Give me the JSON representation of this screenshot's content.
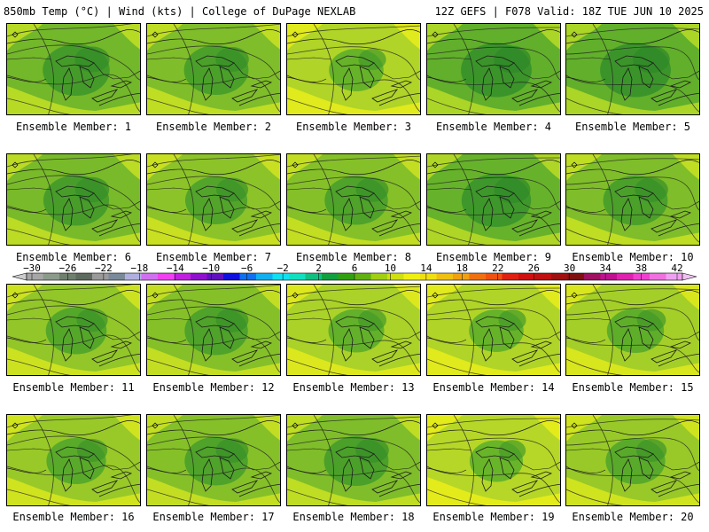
{
  "header": {
    "left": "850mb Temp (°C) | Wind (kts) | College of DuPage NEXLAB",
    "right": "12Z GEFS | F078 Valid: 18Z TUE JUN 10 2025"
  },
  "members": [
    {
      "label": "Ensemble Member: 1",
      "warmth": 0.3
    },
    {
      "label": "Ensemble Member: 2",
      "warmth": 0.4
    },
    {
      "label": "Ensemble Member: 3",
      "warmth": 0.8
    },
    {
      "label": "Ensemble Member: 4",
      "warmth": 0.15
    },
    {
      "label": "Ensemble Member: 5",
      "warmth": 0.15
    },
    {
      "label": "Ensemble Member: 6",
      "warmth": 0.35
    },
    {
      "label": "Ensemble Member: 7",
      "warmth": 0.5
    },
    {
      "label": "Ensemble Member: 8",
      "warmth": 0.45
    },
    {
      "label": "Ensemble Member: 9",
      "warmth": 0.2
    },
    {
      "label": "Ensemble Member: 10",
      "warmth": 0.4
    },
    {
      "label": "Ensemble Member: 11",
      "warmth": 0.55
    },
    {
      "label": "Ensemble Member: 12",
      "warmth": 0.45
    },
    {
      "label": "Ensemble Member: 13",
      "warmth": 0.75
    },
    {
      "label": "Ensemble Member: 14",
      "warmth": 0.8
    },
    {
      "label": "Ensemble Member: 15",
      "warmth": 0.7
    },
    {
      "label": "Ensemble Member: 16",
      "warmth": 0.6
    },
    {
      "label": "Ensemble Member: 17",
      "warmth": 0.45
    },
    {
      "label": "Ensemble Member: 18",
      "warmth": 0.4
    },
    {
      "label": "Ensemble Member: 19",
      "warmth": 0.85
    },
    {
      "label": "Ensemble Member: 20",
      "warmth": 0.6
    }
  ],
  "colorbar": {
    "labels": [
      "-30",
      "-26",
      "-22",
      "-18",
      "-14",
      "-10",
      "-6",
      "-2",
      "2",
      "6",
      "10",
      "14",
      "18",
      "22",
      "26",
      "30",
      "34",
      "38",
      "42"
    ],
    "colors": [
      "#a6a6a6",
      "#8c9a8c",
      "#6e7f6e",
      "#5e6a5e",
      "#9a9a9a",
      "#7a8a9a",
      "#b0b0e0",
      "#d070f0",
      "#f040f0",
      "#c020e0",
      "#9010d0",
      "#6010c0",
      "#1010e0",
      "#1070f0",
      "#10b0f0",
      "#10e0f0",
      "#10e0c0",
      "#10c080",
      "#10a040",
      "#30a010",
      "#60b010",
      "#a0d010",
      "#d0e010",
      "#f0f010",
      "#f0e010",
      "#f0c010",
      "#f0a010",
      "#f07010",
      "#f05010",
      "#e02010",
      "#d01010",
      "#c01010",
      "#a01010",
      "#801010",
      "#a01060",
      "#c01090",
      "#e020b0",
      "#f040d0",
      "#f070e0",
      "#f0a0f0"
    ]
  }
}
